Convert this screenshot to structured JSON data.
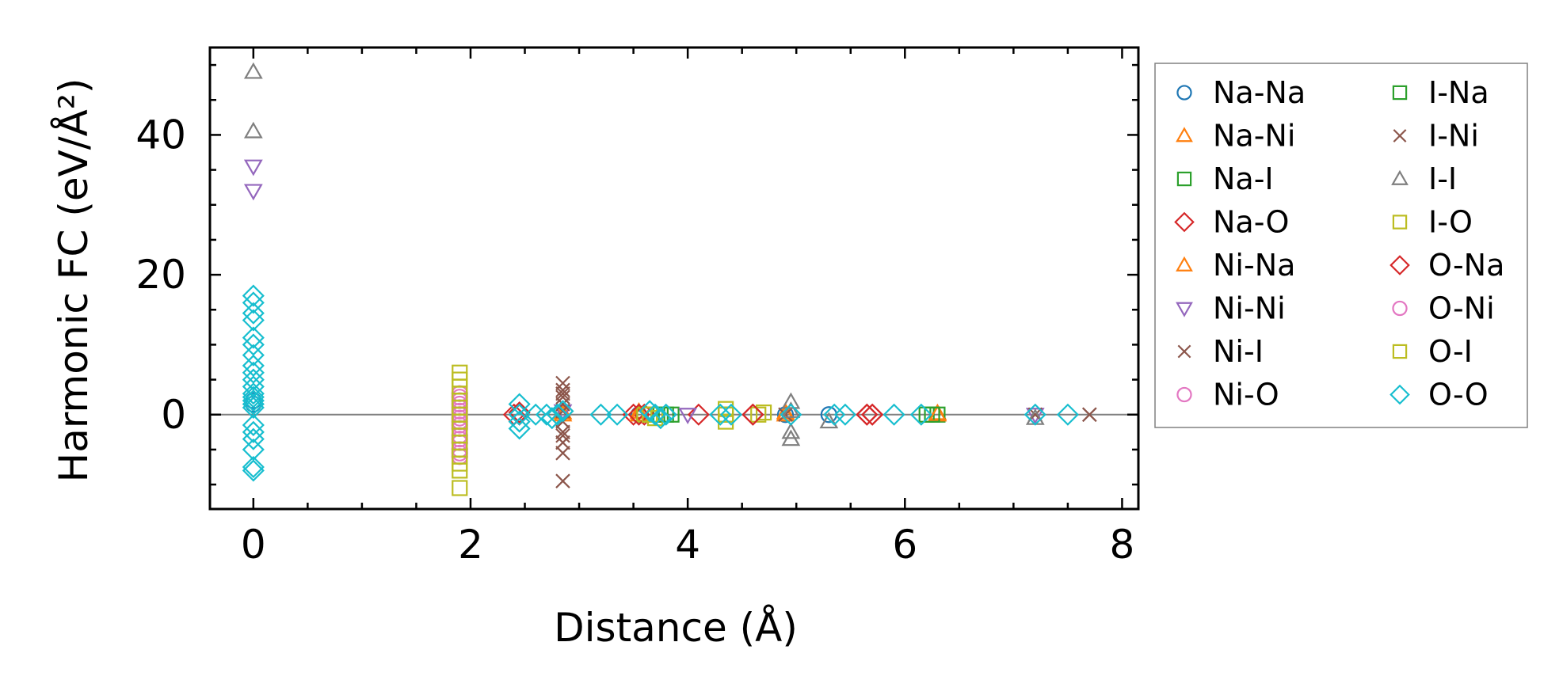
{
  "chart_data": {
    "type": "scatter",
    "xlabel": "Distance (Å)",
    "ylabel": "Harmonic FC (eV/Å²)",
    "xlim": [
      -0.4,
      8.15
    ],
    "ylim": [
      -13.5,
      52.5
    ],
    "x_ticks": [
      0,
      2,
      4,
      6,
      8
    ],
    "y_ticks": [
      0,
      20,
      40
    ],
    "x_minor_step": 0.5,
    "y_minor_step": 5,
    "zero_line": true,
    "legend": {
      "placement": "outside-right",
      "columns": 2
    },
    "series": [
      {
        "name": "Na-Na",
        "marker": "circle",
        "color": "#1f77b4",
        "points": [
          [
            0,
            2.0
          ],
          [
            0,
            1.5
          ],
          [
            3.55,
            0
          ],
          [
            4.9,
            0
          ],
          [
            5.3,
            0
          ]
        ]
      },
      {
        "name": "Na-Ni",
        "marker": "triangle-up",
        "color": "#ff7f0e",
        "points": [
          [
            2.85,
            0.3
          ],
          [
            3.55,
            0.4
          ],
          [
            4.9,
            0.3
          ],
          [
            6.3,
            0.2
          ]
        ]
      },
      {
        "name": "Na-I",
        "marker": "square",
        "color": "#2ca02c",
        "points": [
          [
            3.6,
            0
          ],
          [
            3.75,
            0
          ],
          [
            3.85,
            0
          ],
          [
            4.35,
            0
          ],
          [
            6.2,
            0
          ],
          [
            6.3,
            0
          ]
        ]
      },
      {
        "name": "Na-O",
        "marker": "diamond",
        "color": "#d62728",
        "points": [
          [
            2.4,
            0
          ],
          [
            2.45,
            0.3
          ],
          [
            3.5,
            0
          ],
          [
            3.6,
            0
          ],
          [
            4.1,
            0
          ],
          [
            4.6,
            0
          ],
          [
            5.65,
            0
          ],
          [
            5.7,
            0
          ]
        ]
      },
      {
        "name": "Ni-Na",
        "marker": "triangle-up",
        "color": "#ff7f0e",
        "points": [
          [
            2.85,
            0
          ],
          [
            3.55,
            0
          ],
          [
            4.9,
            0
          ],
          [
            6.3,
            0
          ]
        ]
      },
      {
        "name": "Ni-Ni",
        "marker": "triangle-down",
        "color": "#9467bd",
        "points": [
          [
            0,
            35.5
          ],
          [
            0,
            32.0
          ],
          [
            2.85,
            0.5
          ],
          [
            4.0,
            0
          ],
          [
            7.2,
            0
          ]
        ]
      },
      {
        "name": "Ni-I",
        "marker": "x",
        "color": "#8c564b",
        "points": [
          [
            2.85,
            4.5
          ],
          [
            2.85,
            3.5
          ],
          [
            2.85,
            2.5
          ],
          [
            2.85,
            1.5
          ],
          [
            2.85,
            0.5
          ],
          [
            2.85,
            -1.0
          ],
          [
            2.85,
            -2.5
          ],
          [
            2.85,
            -4.0
          ],
          [
            2.85,
            -5.5
          ],
          [
            2.85,
            -9.5
          ],
          [
            4.9,
            0
          ],
          [
            7.2,
            0
          ],
          [
            7.7,
            0
          ]
        ]
      },
      {
        "name": "Ni-O",
        "marker": "circle",
        "color": "#e377c2",
        "points": [
          [
            1.9,
            3.0
          ],
          [
            1.9,
            2.0
          ],
          [
            1.9,
            1.0
          ],
          [
            1.9,
            0
          ],
          [
            1.9,
            -1.0
          ],
          [
            1.9,
            -2.0
          ],
          [
            1.9,
            -3.0
          ],
          [
            1.9,
            -4.0
          ],
          [
            1.9,
            -5.0
          ],
          [
            1.9,
            -6.0
          ]
        ]
      },
      {
        "name": "I-Na",
        "marker": "square",
        "color": "#2ca02c",
        "points": [
          [
            3.6,
            0
          ],
          [
            3.8,
            0
          ],
          [
            6.25,
            0
          ]
        ]
      },
      {
        "name": "I-Ni",
        "marker": "x",
        "color": "#8c564b",
        "points": [
          [
            2.85,
            3.0
          ],
          [
            2.85,
            -3.0
          ],
          [
            7.7,
            0
          ]
        ]
      },
      {
        "name": "I-I",
        "marker": "triangle-up",
        "color": "#7f7f7f",
        "points": [
          [
            0,
            49.0
          ],
          [
            0,
            40.5
          ],
          [
            4.95,
            1.8
          ],
          [
            4.95,
            0.5
          ],
          [
            4.95,
            -2.5
          ],
          [
            4.95,
            -3.5
          ],
          [
            5.3,
            -1.0
          ],
          [
            7.2,
            -0.5
          ]
        ]
      },
      {
        "name": "I-O",
        "marker": "square",
        "color": "#bcbd22",
        "points": [
          [
            3.6,
            0
          ],
          [
            3.7,
            -0.5
          ],
          [
            4.35,
            0.8
          ],
          [
            4.35,
            -1.0
          ],
          [
            4.65,
            0
          ],
          [
            4.7,
            0.3
          ]
        ]
      },
      {
        "name": "O-Na",
        "marker": "diamond",
        "color": "#d62728",
        "points": [
          [
            2.45,
            0
          ],
          [
            3.55,
            0
          ],
          [
            4.6,
            0
          ],
          [
            5.65,
            0
          ],
          [
            5.7,
            0
          ]
        ]
      },
      {
        "name": "O-Ni",
        "marker": "circle",
        "color": "#e377c2",
        "points": [
          [
            1.9,
            2.5
          ],
          [
            1.9,
            1.5
          ],
          [
            1.9,
            0.5
          ],
          [
            1.9,
            -0.5
          ],
          [
            1.9,
            -1.5
          ],
          [
            1.9,
            -3.5
          ],
          [
            1.9,
            -5.5
          ]
        ]
      },
      {
        "name": "O-I",
        "marker": "square",
        "color": "#bcbd22",
        "points": [
          [
            1.9,
            6.0
          ],
          [
            1.9,
            5.0
          ],
          [
            1.9,
            4.0
          ],
          [
            1.9,
            3.0
          ],
          [
            1.9,
            2.0
          ],
          [
            1.9,
            1.0
          ],
          [
            1.9,
            0
          ],
          [
            1.9,
            -1.0
          ],
          [
            1.9,
            -2.0
          ],
          [
            1.9,
            -3.0
          ],
          [
            1.9,
            -4.0
          ],
          [
            1.9,
            -5.0
          ],
          [
            1.9,
            -6.0
          ],
          [
            1.9,
            -7.0
          ],
          [
            1.9,
            -8.0
          ],
          [
            1.9,
            -10.5
          ],
          [
            3.65,
            0
          ],
          [
            4.35,
            0
          ]
        ]
      },
      {
        "name": "O-O",
        "marker": "diamond",
        "color": "#17becf",
        "points": [
          [
            0,
            17.0
          ],
          [
            0,
            16.0
          ],
          [
            0,
            14.5
          ],
          [
            0,
            13.5
          ],
          [
            0,
            11.0
          ],
          [
            0,
            10.0
          ],
          [
            0,
            8.5
          ],
          [
            0,
            7.0
          ],
          [
            0,
            6.0
          ],
          [
            0,
            5.0
          ],
          [
            0,
            4.0
          ],
          [
            0,
            3.0
          ],
          [
            0,
            2.5
          ],
          [
            0,
            2.0
          ],
          [
            0,
            1.5
          ],
          [
            0,
            1.0
          ],
          [
            0,
            -1.5
          ],
          [
            0,
            -2.5
          ],
          [
            0,
            -3.5
          ],
          [
            0,
            -5.0
          ],
          [
            0,
            -7.5
          ],
          [
            0,
            -8.0
          ],
          [
            2.45,
            1.5
          ],
          [
            2.45,
            0
          ],
          [
            2.45,
            -1.0
          ],
          [
            2.45,
            -2.0
          ],
          [
            2.6,
            0
          ],
          [
            2.7,
            0
          ],
          [
            2.75,
            -0.5
          ],
          [
            2.8,
            0
          ],
          [
            2.85,
            0.5
          ],
          [
            3.2,
            0
          ],
          [
            3.35,
            0
          ],
          [
            3.65,
            0.5
          ],
          [
            3.7,
            0
          ],
          [
            3.75,
            -0.5
          ],
          [
            3.8,
            0
          ],
          [
            4.3,
            0
          ],
          [
            4.4,
            0
          ],
          [
            4.95,
            0
          ],
          [
            5.35,
            0
          ],
          [
            5.45,
            0
          ],
          [
            5.9,
            0
          ],
          [
            6.15,
            0
          ],
          [
            7.2,
            0
          ],
          [
            7.5,
            0
          ]
        ]
      }
    ]
  }
}
